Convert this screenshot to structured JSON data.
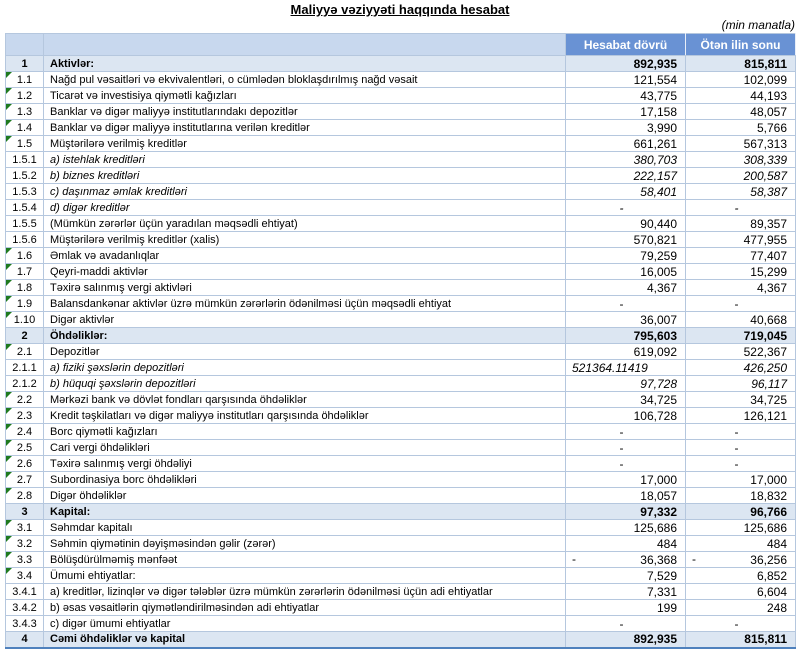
{
  "title": "Maliyyə vəziyyəti haqqında hesabat",
  "unit_note": "(min manatla)",
  "colors": {
    "header_bg": "#6992d4",
    "header_left_bg": "#c8d8ee",
    "section_row_bg": "#dce6f2",
    "grid_border": "#b5c7de",
    "bottom_border": "#4f81bd",
    "error_indicator_green": "#1f7a1f",
    "header_text": "#ffffff"
  },
  "table": {
    "negative_sign": "-",
    "header": {
      "current_period": "Hesabat dövrü",
      "previous_period": "Ötən ilin sonu"
    },
    "rows": [
      {
        "num": "1",
        "label": "Aktivlər:",
        "v1": "892,935",
        "v2": "815,811",
        "style": "section"
      },
      {
        "num": "1.1",
        "label": "Nağd pul vəsaitləri və  ekvivalentləri, o cümlədən bloklaşdırılmış nağd vəsait",
        "v1": "121,554",
        "v2": "102,099",
        "tri": true
      },
      {
        "num": "1.2",
        "label": "Ticarət və investisiya qiymətli kağızları",
        "v1": "43,775",
        "v2": "44,193",
        "tri": true
      },
      {
        "num": "1.3",
        "label": "Banklar və digər maliyyə institutlarındakı depozitlər",
        "v1": "17,158",
        "v2": "48,057",
        "tri": true
      },
      {
        "num": "1.4",
        "label": "Banklar və digər maliyyə institutlarına verilən kreditlər",
        "v1": "3,990",
        "v2": "5,766",
        "tri": true
      },
      {
        "num": "1.5",
        "label": "Müştərilərə verilmiş kreditlər",
        "v1": "661,261",
        "v2": "567,313",
        "tri": true
      },
      {
        "num": "1.5.1",
        "label": "a) istehlak kreditləri",
        "v1": "380,703",
        "v2": "308,339",
        "style": "sub"
      },
      {
        "num": "1.5.2",
        "label": "b) biznes kreditləri",
        "v1": "222,157",
        "v2": "200,587",
        "style": "sub"
      },
      {
        "num": "1.5.3",
        "label": "c) daşınmaz əmlak kreditləri",
        "v1": "58,401",
        "v2": "58,387",
        "style": "sub"
      },
      {
        "num": "1.5.4",
        "label": "d) digər kreditlər",
        "v1": "-",
        "v2": "-",
        "style": "sub"
      },
      {
        "num": "1.5.5",
        "label": "(Mümkün zərərlər üçün yaradılan məqsədli ehtiyat)",
        "v1": "90,440",
        "v2": "89,357"
      },
      {
        "num": "1.5.6",
        "label": "Müştərilərə verilmiş kreditlər (xalis)",
        "v1": "570,821",
        "v2": "477,955"
      },
      {
        "num": "1.6",
        "label": "Əmlak və avadanlıqlar",
        "v1": "79,259",
        "v2": "77,407",
        "tri": true
      },
      {
        "num": "1.7",
        "label": "Qeyri-maddi aktivlər",
        "v1": "16,005",
        "v2": "15,299",
        "tri": true
      },
      {
        "num": "1.8",
        "label": "Təxirə salınmış vergi aktivləri",
        "v1": "4,367",
        "v2": "4,367",
        "tri": true
      },
      {
        "num": "1.9",
        "label": "Balansdankənar aktivlər üzrə mümkün zərərlərin ödənilməsi üçün məqsədli ehtiyat",
        "v1": "-",
        "v2": "-",
        "tri": true
      },
      {
        "num": "1.10",
        "label": "Digər aktivlər",
        "v1": "36,007",
        "v2": "40,668",
        "tri": true
      },
      {
        "num": "2",
        "label": "Öhdəliklər:",
        "v1": "795,603",
        "v2": "719,045",
        "style": "section"
      },
      {
        "num": "2.1",
        "label": "Depozitlər",
        "v1": "619,092",
        "v2": "522,367",
        "tri": true
      },
      {
        "num": "2.1.1",
        "label": "a) fiziki şəxslərin depozitləri",
        "v1": "521364.11419",
        "v2": "426,250",
        "style": "sub",
        "v1_left": true
      },
      {
        "num": "2.1.2",
        "label": "b) hüquqi şəxslərin depozitləri",
        "v1": "97,728",
        "v2": "96,117",
        "style": "sub"
      },
      {
        "num": "2.2",
        "label": "Mərkəzi bank və dövlət fondları qarşısında öhdəliklər",
        "v1": "34,725",
        "v2": "34,725",
        "tri": true
      },
      {
        "num": "2.3",
        "label": "Kredit təşkilatları və digər maliyyə institutları qarşısında öhdəliklər",
        "v1": "106,728",
        "v2": "126,121",
        "tri": true
      },
      {
        "num": "2.4",
        "label": "Borc qiymətli kağızları",
        "v1": "-",
        "v2": "-",
        "tri": true
      },
      {
        "num": "2.5",
        "label": "Cari vergi öhdəlikləri",
        "v1": "-",
        "v2": "-",
        "tri": true
      },
      {
        "num": "2.6",
        "label": "Təxirə salınmış vergi öhdəliyi",
        "v1": "-",
        "v2": "-",
        "tri": true
      },
      {
        "num": "2.7",
        "label": "Subordinasiya borc öhdəlikləri",
        "v1": "17,000",
        "v2": "17,000",
        "tri": true
      },
      {
        "num": "2.8",
        "label": "Digər öhdəliklər",
        "v1": "18,057",
        "v2": "18,832",
        "tri": true
      },
      {
        "num": "3",
        "label": "Kapital:",
        "v1": "97,332",
        "v2": "96,766",
        "style": "section"
      },
      {
        "num": "3.1",
        "label": "Səhmdar kapitalı",
        "v1": "125,686",
        "v2": "125,686",
        "tri": true
      },
      {
        "num": "3.2",
        "label": "Səhmin qiymətinin dəyişməsindən gəlir (zərər)",
        "v1": "484",
        "v2": "484",
        "tri": true
      },
      {
        "num": "3.3",
        "label": "Bölüşdürülməmiş mənfəət",
        "v1": "36,368",
        "v2": "36,256",
        "tri": true,
        "neg": true
      },
      {
        "num": "3.4",
        "label": "Ümumi ehtiyatlar:",
        "v1": "7,529",
        "v2": "6,852",
        "tri": true
      },
      {
        "num": "3.4.1",
        "label": "a) kreditlər, lizinqlər və digər tələblər üzrə mümkün zərərlərin ödənilməsi üçün adi ehtiyatlar",
        "v1": "7,331",
        "v2": "6,604"
      },
      {
        "num": "3.4.2",
        "label": "b) əsas vəsaitlərin qiymətləndirilməsindən adi ehtiyatlar",
        "v1": "199",
        "v2": "248"
      },
      {
        "num": "3.4.3",
        "label": "c) digər ümumi ehtiyatlar",
        "v1": "-",
        "v2": "-"
      },
      {
        "num": "4",
        "label": "Cəmi öhdəliklər və kapital",
        "v1": "892,935",
        "v2": "815,811",
        "style": "section"
      }
    ]
  }
}
